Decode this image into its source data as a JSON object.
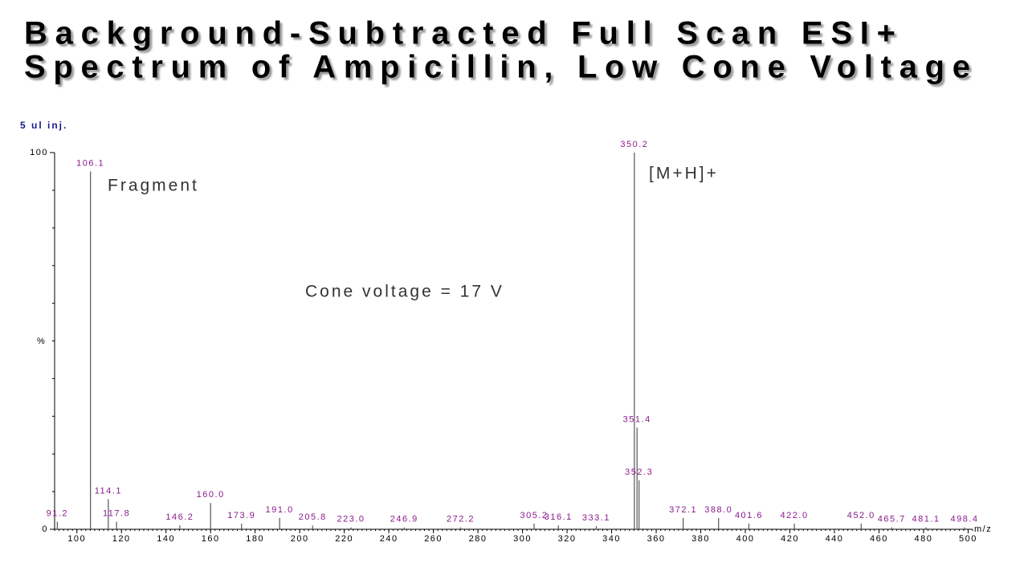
{
  "chart_data": {
    "type": "stick",
    "title": [
      "Background-Subtracted Full Scan ESI+",
      "Spectrum of Ampicillin, Low Cone Voltage"
    ],
    "note": "5 ul inj.",
    "ylabel": "%",
    "xlabel": "m/z",
    "annotations": [
      "Fragment",
      "[M+H]+",
      "Cone voltage = 17 V"
    ],
    "x": [
      91.2,
      106.1,
      114.1,
      117.8,
      146.2,
      160.0,
      173.9,
      191.0,
      205.8,
      223.0,
      246.9,
      272.2,
      305.2,
      316.1,
      333.1,
      350.2,
      351.4,
      352.3,
      372.1,
      388.0,
      401.6,
      422.0,
      452.0,
      465.7,
      481.1,
      498.4
    ],
    "x_labels": [
      "91.2",
      "106.1",
      "114.1",
      "117.8",
      "146.2",
      "160.0",
      "173.9",
      "191.0",
      "205.8",
      "223.0",
      "246.9",
      "272.2",
      "305.2",
      "316.1",
      "333.1",
      "350.2",
      "351.4",
      "352.3",
      "372.1",
      "388.0",
      "401.6",
      "422.0",
      "452.0",
      "465.7",
      "481.1",
      "498.4"
    ],
    "values": [
      2,
      95,
      8,
      2,
      1,
      7,
      1.5,
      3,
      1,
      0.5,
      0.5,
      0.5,
      1.5,
      1,
      0.8,
      100,
      27,
      13,
      3,
      3,
      1.5,
      1.5,
      1.5,
      0.5,
      0.5,
      0.5
    ],
    "color": "#555555",
    "xlim": [
      90,
      502
    ],
    "xticks": [
      100,
      120,
      140,
      160,
      180,
      200,
      220,
      240,
      260,
      280,
      300,
      320,
      340,
      360,
      380,
      400,
      420,
      440,
      460,
      480,
      500
    ],
    "ylim": [
      0,
      100
    ],
    "yticks": [
      0,
      100
    ],
    "yminorticks": [
      10,
      20,
      30,
      40,
      50,
      60,
      70,
      80,
      90
    ]
  }
}
